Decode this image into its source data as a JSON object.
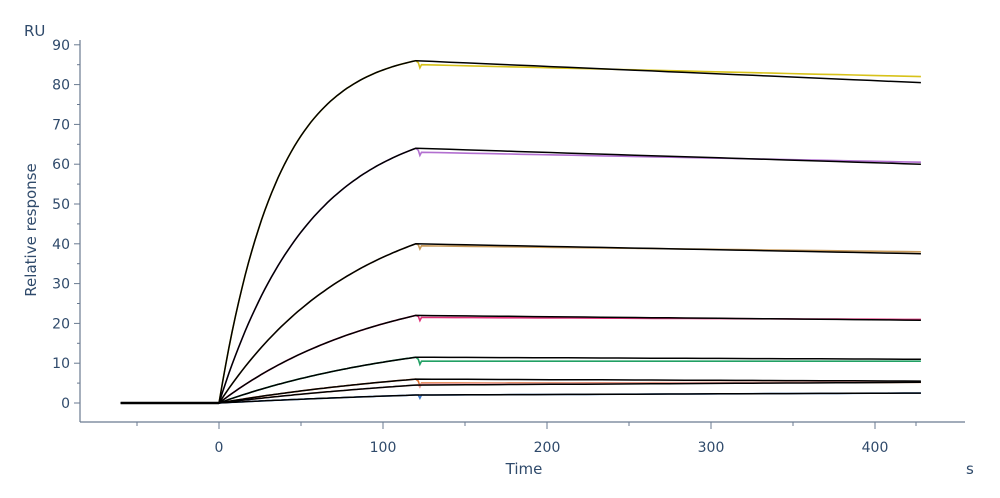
{
  "chart_data": {
    "type": "line",
    "title": "",
    "xlabel": "Time",
    "ylabel": "Relative response",
    "x_unit": "s",
    "y_unit": "RU",
    "xlim": [
      -60,
      430
    ],
    "ylim": [
      -4,
      92
    ],
    "x_major_ticks": [
      0,
      100,
      200,
      300,
      400
    ],
    "x_minor_ticks": [
      -50,
      50,
      150,
      250,
      350,
      425
    ],
    "y_major_ticks": [
      0,
      10,
      20,
      30,
      40,
      50,
      60,
      70,
      80,
      90
    ],
    "legend": "none",
    "grid": false,
    "baseline": {
      "x_start": -60,
      "x_end": 0
    },
    "injection_end": 120,
    "series": [
      {
        "color": "#d7c21a",
        "association_end": 86,
        "dissociation_start": 85,
        "dissociation_end": 82,
        "kobs": 0.028,
        "fit_end": 80.5
      },
      {
        "color": "#b26fd0",
        "association_end": 64,
        "dissociation_start": 63,
        "dissociation_end": 60.5,
        "kobs": 0.018,
        "fit_end": 60
      },
      {
        "color": "#c89a5a",
        "association_end": 40,
        "dissociation_start": 39.5,
        "dissociation_end": 38,
        "kobs": 0.012,
        "fit_end": 37.5
      },
      {
        "color": "#e0307a",
        "association_end": 22,
        "dissociation_start": 21.5,
        "dissociation_end": 21,
        "kobs": 0.01,
        "fit_end": 20.8
      },
      {
        "color": "#21a064",
        "association_end": 11.5,
        "dissociation_start": 10.5,
        "dissociation_end": 10.5,
        "kobs": 0.008,
        "fit_end": 11
      },
      {
        "color": "#e07030",
        "association_end": 6,
        "dissociation_start": 5,
        "dissociation_end": 5.2,
        "kobs": 0.006,
        "fit_end": 5.5
      },
      {
        "color": "#e6a0a0",
        "association_end": 4.5,
        "dissociation_start": 4.8,
        "dissociation_end": 5.3,
        "kobs": 0.005,
        "fit_end": 5.2
      },
      {
        "color": "#3b78c8",
        "association_end": 2,
        "dissociation_start": 2,
        "dissociation_end": 2.5,
        "kobs": 0.004,
        "fit_end": 2.5
      }
    ],
    "fit_color": "#000000"
  }
}
